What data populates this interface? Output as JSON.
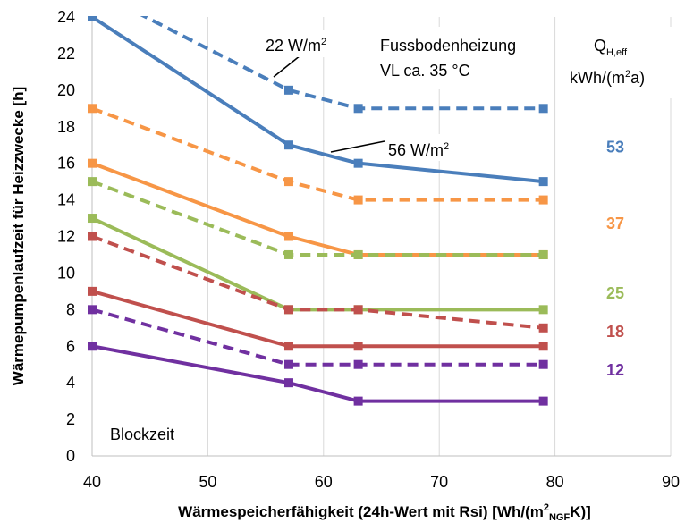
{
  "chart_data": {
    "type": "line",
    "xlabel_parts": [
      "Wärmespeicherfähigkeit (24h-Wert mit Rsi)  [Wh/(m",
      "2",
      "NGF",
      "K)]"
    ],
    "ylabel": "Wärmepumpenlaufzeit für Heizzwecke   [h]",
    "xlim": [
      40,
      90
    ],
    "ylim": [
      0,
      24
    ],
    "x_ticks": [
      40,
      50,
      60,
      70,
      80,
      90
    ],
    "y_ticks": [
      0,
      2,
      4,
      6,
      8,
      10,
      12,
      14,
      16,
      18,
      20,
      22,
      24
    ],
    "grid": "vertical",
    "series": [
      {
        "color": "#4a7ebb",
        "style": "solid",
        "x": [
          40,
          57,
          63,
          79
        ],
        "y": [
          24,
          17,
          16,
          15
        ]
      },
      {
        "color": "#4a7ebb",
        "style": "dashed",
        "x": [
          40,
          57,
          63,
          79
        ],
        "y": [
          25.5,
          20,
          19,
          19
        ]
      },
      {
        "color": "#f79646",
        "style": "solid",
        "x": [
          40,
          57,
          63,
          79
        ],
        "y": [
          16,
          12,
          11,
          11
        ]
      },
      {
        "color": "#f79646",
        "style": "dashed",
        "x": [
          40,
          57,
          63,
          79
        ],
        "y": [
          19,
          15,
          14,
          14
        ]
      },
      {
        "color": "#9bbb59",
        "style": "solid",
        "x": [
          40,
          57,
          63,
          79
        ],
        "y": [
          13,
          8,
          8,
          8
        ]
      },
      {
        "color": "#9bbb59",
        "style": "dashed",
        "x": [
          40,
          57,
          63,
          79
        ],
        "y": [
          15,
          11,
          11,
          11
        ]
      },
      {
        "color": "#c0504d",
        "style": "solid",
        "x": [
          40,
          57,
          63,
          79
        ],
        "y": [
          9,
          6,
          6,
          6
        ]
      },
      {
        "color": "#c0504d",
        "style": "dashed",
        "x": [
          40,
          57,
          63,
          79
        ],
        "y": [
          12,
          8,
          8,
          7
        ]
      },
      {
        "color": "#7030a0",
        "style": "solid",
        "x": [
          40,
          57,
          63,
          79
        ],
        "y": [
          6,
          4,
          3,
          3
        ]
      },
      {
        "color": "#7030a0",
        "style": "dashed",
        "x": [
          40,
          57,
          63,
          79
        ],
        "y": [
          8,
          5,
          5,
          5
        ]
      }
    ],
    "annotations": {
      "w22_value": "22 W/m",
      "w22_exp": "2",
      "w56_value": "56 W/m",
      "w56_exp": "2",
      "heating_line1": "Fussbodenheizung",
      "heating_line2": "VL ca. 35 °C",
      "q_header_main": "Q",
      "q_header_sub": "H,eff",
      "q_unit_a": "kWh/(m",
      "q_unit_exp": "2",
      "q_unit_b": "a)",
      "blockzeit": "Blockzeit"
    },
    "q_labels": [
      {
        "text": "53",
        "color": "#4a7ebb",
        "y": 16.9
      },
      {
        "text": "37",
        "color": "#f79646",
        "y": 12.7
      },
      {
        "text": "25",
        "color": "#9bbb59",
        "y": 8.9
      },
      {
        "text": "18",
        "color": "#c0504d",
        "y": 6.8
      },
      {
        "text": "12",
        "color": "#7030a0",
        "y": 4.7
      }
    ]
  }
}
